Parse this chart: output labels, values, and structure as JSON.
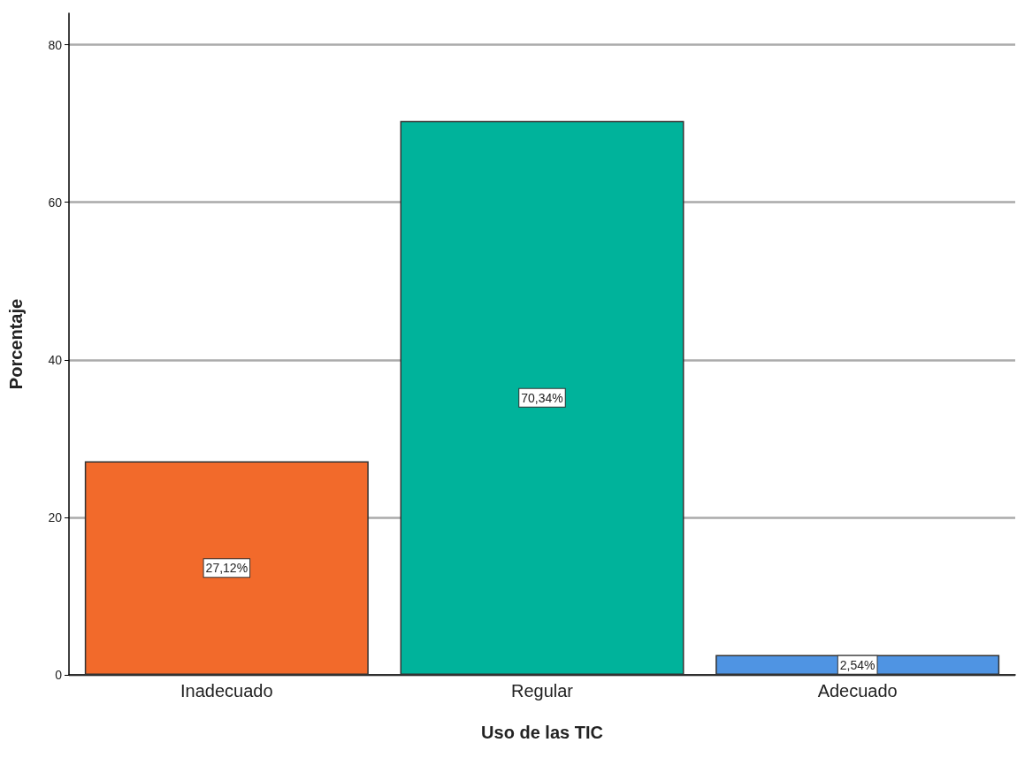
{
  "chart_data": {
    "type": "bar",
    "xlabel": "Uso de las TIC",
    "ylabel": "Porcentaje",
    "categories": [
      "Inadecuado",
      "Regular",
      "Adecuado"
    ],
    "values": [
      27.12,
      70.34,
      2.54
    ],
    "value_labels": [
      "27,12%",
      "70,34%",
      "2,54%"
    ],
    "colors": [
      "#f26a2b",
      "#00b39b",
      "#4f94e3"
    ],
    "ylim": [
      0,
      84
    ],
    "yticks": [
      0,
      20,
      40,
      60,
      80
    ],
    "grid": "y"
  }
}
